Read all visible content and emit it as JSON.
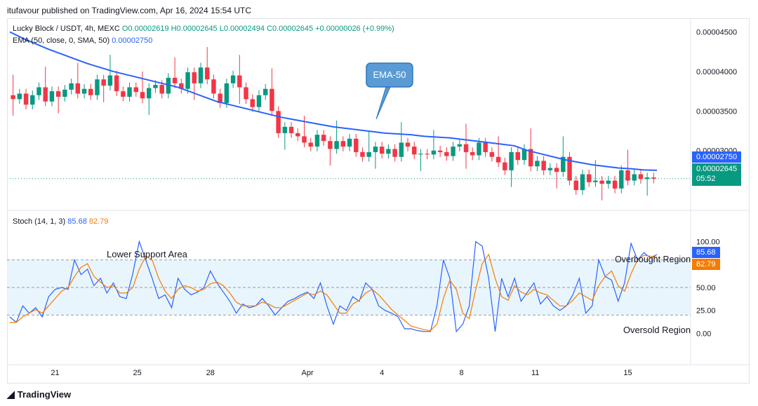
{
  "header": {
    "publisher": "itufavour published on TradingView.com, Apr 16, 2024 15:54 UTC"
  },
  "legend": {
    "symbol": "Lucky Block / USDT, 4h, MEXC",
    "ohlc": "O0.00002619 H0.00002645 L0.00002494 C0.00002645 +0.00000026 (+0.99%)",
    "ema_label": "EMA (50, close, 0, SMA, 50)",
    "ema_value": "0.00002750",
    "stoch_label": "Stoch (14, 1, 3)",
    "stoch_k": "85.68",
    "stoch_d": "82.79"
  },
  "price_tags": {
    "ema": "0.00002750",
    "last": "0.00002645",
    "countdown": "05:52",
    "stoch_k": "85.68",
    "stoch_d": "82.79"
  },
  "annotations": {
    "ema_callout": "EMA-50",
    "lower_support": "Lower Support Area",
    "overbought": "Overbought Region",
    "oversold": "Oversold Region"
  },
  "footer": {
    "brand": "TradingView"
  },
  "colors": {
    "up": "#089981",
    "down": "#f23645",
    "ema": "#2962ff",
    "k": "#2962ff",
    "d": "#f57c00",
    "band": "#e3f2fd"
  },
  "chart_data": [
    {
      "type": "candlestick",
      "title": "Lucky Block / USDT, 4h, MEXC",
      "price_axis_ticks": [
        4.5e-05,
        4e-05,
        3.5e-05,
        3e-05
      ],
      "price_axis_labels": [
        "0.00004500",
        "0.00004000",
        "0.00003500",
        "0.00003000"
      ],
      "ylim": [
        2.35e-05,
        4.62e-05
      ],
      "x_tick_labels": [
        "21",
        "25",
        "28",
        "Apr",
        "4",
        "8",
        "11",
        "15"
      ],
      "close_series": [
        3.65,
        3.72,
        3.58,
        3.7,
        3.8,
        3.62,
        3.75,
        3.68,
        3.77,
        3.85,
        3.72,
        3.78,
        3.7,
        3.9,
        3.82,
        3.95,
        3.75,
        3.68,
        3.8,
        3.74,
        3.66,
        3.79,
        3.83,
        3.72,
        3.92,
        3.85,
        3.78,
        3.99,
        3.85,
        4.05,
        3.9,
        3.72,
        3.6,
        3.85,
        3.95,
        3.8,
        3.65,
        3.55,
        3.7,
        3.78,
        3.5,
        3.22,
        3.3,
        3.22,
        3.18,
        3.1,
        3.05,
        3.2,
        3.12,
        3.02,
        3.12,
        3.05,
        3.15,
        2.98,
        2.92,
        2.98,
        3.05,
        2.96,
        3.02,
        2.92,
        3.1,
        3.05,
        2.95,
        2.96,
        2.95,
        3.0,
        2.98,
        2.93,
        3.05,
        3.08,
        2.98,
        2.94,
        3.1,
        2.98,
        2.92,
        2.85,
        2.75,
        2.98,
        2.88,
        3.02,
        2.8,
        2.87,
        2.75,
        2.78,
        2.73,
        2.92,
        2.62,
        2.5,
        2.7,
        2.6,
        2.62,
        2.58,
        2.62,
        2.52,
        2.75,
        2.62,
        2.7,
        2.64,
        2.66,
        2.645
      ],
      "ema50": {
        "name": "EMA (50, close, 0, SMA, 50)",
        "values": [
          4.5,
          4.42,
          4.35,
          4.28,
          4.22,
          4.16,
          4.1,
          4.05,
          4.0,
          3.96,
          3.92,
          3.88,
          3.84,
          3.8,
          3.74,
          3.68,
          3.62,
          3.58,
          3.54,
          3.5,
          3.46,
          3.42,
          3.39,
          3.36,
          3.33,
          3.3,
          3.28,
          3.26,
          3.24,
          3.22,
          3.21,
          3.2,
          3.18,
          3.17,
          3.16,
          3.14,
          3.12,
          3.1,
          3.08,
          3.06,
          3.0,
          2.96,
          2.92,
          2.88,
          2.85,
          2.82,
          2.8,
          2.78,
          2.77,
          2.755,
          2.75
        ]
      },
      "last_price": 2.645e-05,
      "ema_last": 2.75e-05
    },
    {
      "type": "line",
      "title": "Stoch (14, 1, 3)",
      "y_ticks": [
        100,
        75,
        50,
        25,
        0
      ],
      "y_tick_labels": [
        "100.00",
        "75.00",
        "50.00",
        "25.00",
        "0.00"
      ],
      "ylim": [
        -5,
        105
      ],
      "band": [
        20,
        80
      ],
      "series": [
        {
          "name": "%K",
          "values": [
            18,
            12,
            30,
            22,
            28,
            18,
            40,
            48,
            50,
            48,
            80,
            64,
            70,
            52,
            60,
            44,
            55,
            40,
            38,
            65,
            100,
            80,
            60,
            38,
            42,
            28,
            60,
            48,
            42,
            45,
            50,
            68,
            55,
            45,
            35,
            22,
            32,
            28,
            30,
            38,
            30,
            20,
            28,
            35,
            38,
            42,
            45,
            38,
            55,
            30,
            10,
            30,
            25,
            40,
            35,
            55,
            48,
            30,
            25,
            22,
            18,
            5,
            5,
            3,
            2,
            2,
            30,
            80,
            60,
            2,
            10,
            30,
            100,
            95,
            60,
            2,
            60,
            40,
            60,
            35,
            45,
            55,
            32,
            40,
            30,
            25,
            30,
            42,
            60,
            22,
            30,
            80,
            62,
            58,
            35,
            55,
            98,
            80,
            88,
            82,
            86
          ]
        },
        {
          "name": "%D",
          "values": [
            12,
            12,
            18,
            22,
            26,
            22,
            30,
            38,
            46,
            50,
            62,
            72,
            76,
            62,
            56,
            50,
            52,
            44,
            44,
            50,
            70,
            84,
            80,
            60,
            46,
            38,
            48,
            52,
            50,
            46,
            48,
            54,
            56,
            52,
            44,
            34,
            30,
            30,
            30,
            34,
            32,
            28,
            28,
            32,
            36,
            40,
            44,
            42,
            46,
            42,
            32,
            22,
            22,
            32,
            36,
            44,
            48,
            42,
            34,
            26,
            20,
            14,
            8,
            6,
            4,
            3,
            10,
            38,
            58,
            48,
            22,
            16,
            48,
            76,
            86,
            60,
            40,
            36,
            52,
            45,
            42,
            48,
            44,
            42,
            36,
            30,
            30,
            36,
            44,
            40,
            36,
            52,
            62,
            68,
            52,
            46,
            65,
            80,
            85,
            84,
            83
          ]
        }
      ]
    }
  ]
}
